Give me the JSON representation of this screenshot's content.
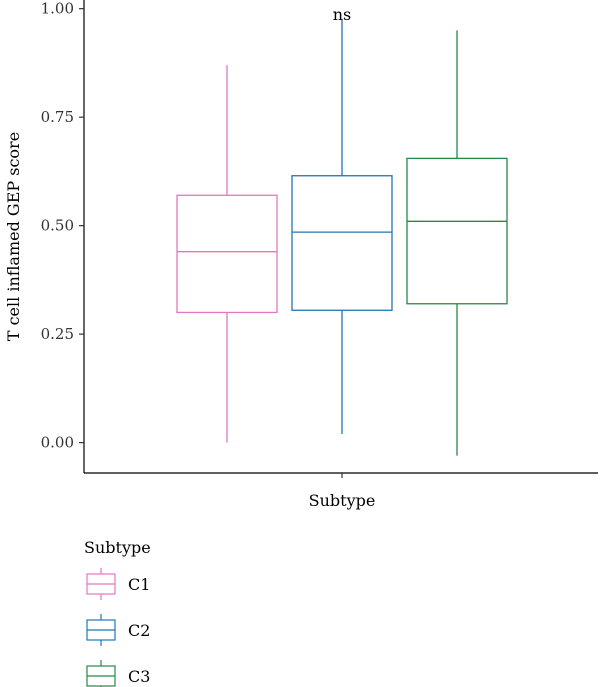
{
  "chart_data": {
    "type": "boxplot",
    "xlabel": "Subtype",
    "ylabel": "T cell inflamed GEP score",
    "ylim": [
      -0.07,
      1.02
    ],
    "yticks": [
      0.0,
      0.25,
      0.5,
      0.75,
      1.0
    ],
    "ytick_labels": [
      "0.00",
      "0.25",
      "0.50",
      "0.75",
      "1.00"
    ],
    "annotation": "ns",
    "grid": false,
    "legend": {
      "title": "Subtype",
      "placement": "bottom-left",
      "entries": [
        "C1",
        "C2",
        "C3"
      ]
    },
    "series": [
      {
        "name": "C1",
        "color": "#e377c2",
        "whisker_low": 0.0,
        "q1": 0.3,
        "median": 0.44,
        "q3": 0.57,
        "whisker_high": 0.87
      },
      {
        "name": "C2",
        "color": "#1f77b4",
        "whisker_low": 0.02,
        "q1": 0.305,
        "median": 0.485,
        "q3": 0.615,
        "whisker_high": 0.975
      },
      {
        "name": "C3",
        "color": "#238b45",
        "whisker_low": -0.03,
        "q1": 0.32,
        "median": 0.51,
        "q3": 0.655,
        "whisker_high": 0.95
      }
    ]
  }
}
